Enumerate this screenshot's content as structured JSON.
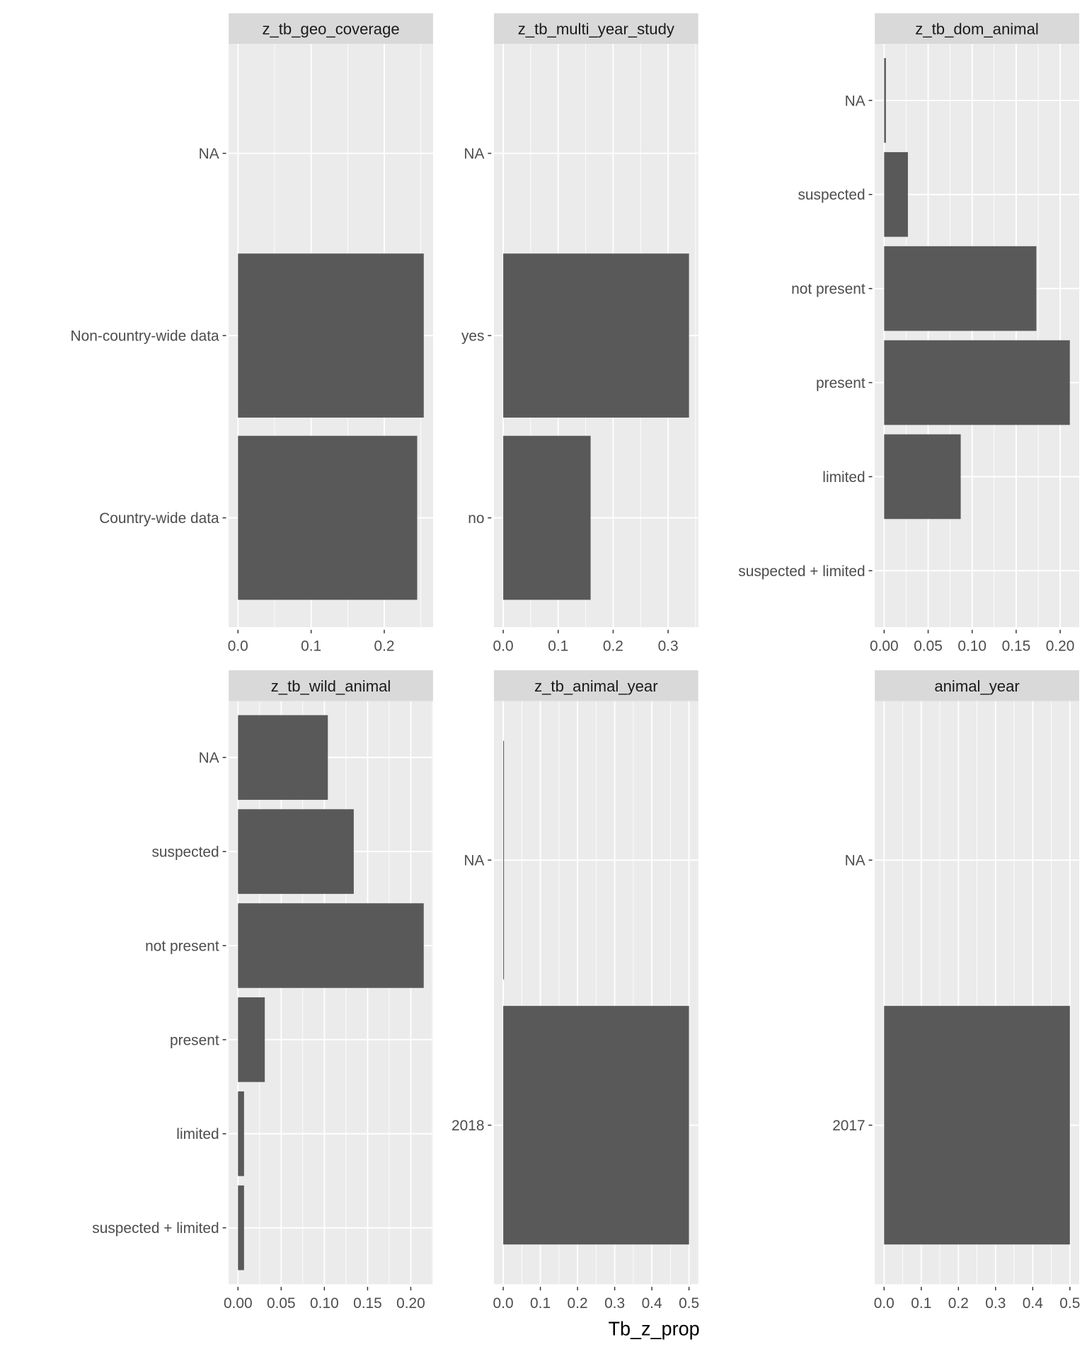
{
  "chart_data": {
    "type": "bar",
    "orientation": "horizontal",
    "xlabel": "Tb_z_prop",
    "ylabel": "",
    "grid": true,
    "colors": {
      "bar": "#595959",
      "panel": "#EBEBEB",
      "strip": "#D9D9D9",
      "grid": "#FFFFFF"
    },
    "panels": [
      {
        "title": "z_tb_geo_coverage",
        "categories": [
          "NA",
          "Non-country-wide data",
          "Country-wide data"
        ],
        "values": [
          0,
          0.254,
          0.245
        ],
        "ticks": [
          0,
          0.1,
          0.2
        ],
        "tick_labels": [
          "0.0",
          "0.1",
          "0.2"
        ],
        "xlim": [
          -0.0127,
          0.2667
        ]
      },
      {
        "title": "z_tb_multi_year_study",
        "categories": [
          "NA",
          "yes",
          "no"
        ],
        "values": [
          0,
          0.338,
          0.159
        ],
        "ticks": [
          0,
          0.1,
          0.2,
          0.3
        ],
        "tick_labels": [
          "0.0",
          "0.1",
          "0.2",
          "0.3"
        ],
        "xlim": [
          -0.0169,
          0.3549
        ]
      },
      {
        "title": "z_tb_dom_animal",
        "categories": [
          "NA",
          "suspected",
          "not present",
          "present",
          "limited",
          "suspected + limited"
        ],
        "values": [
          0.002,
          0.027,
          0.173,
          0.211,
          0.087,
          0
        ],
        "ticks": [
          0,
          0.05,
          0.1,
          0.15,
          0.2
        ],
        "tick_labels": [
          "0.00",
          "0.05",
          "0.10",
          "0.15",
          "0.20"
        ],
        "xlim": [
          -0.0106,
          0.2216
        ]
      },
      {
        "title": "z_tb_wild_animal",
        "categories": [
          "NA",
          "suspected",
          "not present",
          "present",
          "limited",
          "suspected + limited"
        ],
        "values": [
          0.104,
          0.134,
          0.215,
          0.031,
          0.007,
          0.007
        ],
        "ticks": [
          0,
          0.05,
          0.1,
          0.15,
          0.2
        ],
        "tick_labels": [
          "0.00",
          "0.05",
          "0.10",
          "0.15",
          "0.20"
        ],
        "xlim": [
          -0.01075,
          0.2258
        ]
      },
      {
        "title": "z_tb_animal_year",
        "categories": [
          "NA",
          "2018"
        ],
        "values": [
          0.002,
          0.5
        ],
        "ticks": [
          0,
          0.1,
          0.2,
          0.3,
          0.4,
          0.5
        ],
        "tick_labels": [
          "0.0",
          "0.1",
          "0.2",
          "0.3",
          "0.4",
          "0.5"
        ],
        "xlim": [
          -0.025,
          0.525
        ]
      },
      {
        "title": "animal_year",
        "categories": [
          "NA",
          "2017"
        ],
        "values": [
          0,
          0.5
        ],
        "ticks": [
          0,
          0.1,
          0.2,
          0.3,
          0.4,
          0.5
        ],
        "tick_labels": [
          "0.0",
          "0.1",
          "0.2",
          "0.3",
          "0.4",
          "0.5"
        ],
        "xlim": [
          -0.025,
          0.525
        ]
      }
    ]
  }
}
